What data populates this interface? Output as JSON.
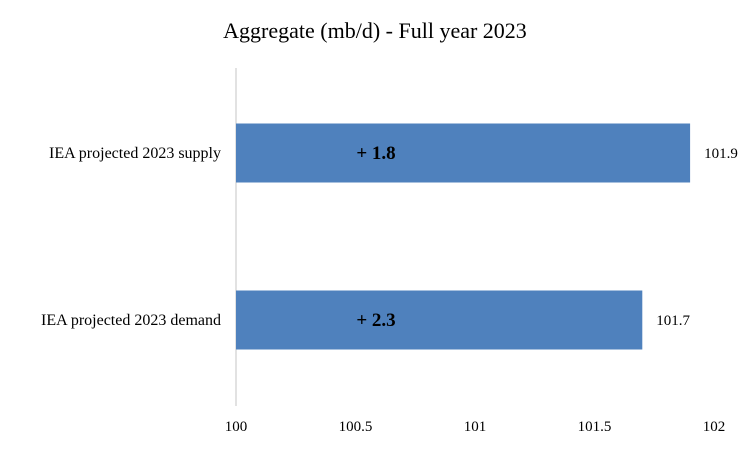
{
  "chart_data": {
    "type": "bar",
    "orientation": "horizontal",
    "title": "Aggregate (mb/d) - Full year 2023",
    "xlabel": "",
    "ylabel": "",
    "categories": [
      "IEA projected 2023 supply",
      "IEA projected 2023 demand"
    ],
    "values": [
      101.9,
      101.7
    ],
    "data_labels": [
      "101.9",
      "101.7"
    ],
    "annotations": [
      "+ 1.8",
      "+ 2.3"
    ],
    "xlim": [
      100,
      102
    ],
    "xticks": [
      100,
      100.5,
      101,
      101.5,
      102
    ],
    "xtick_labels": [
      "100",
      "100.5",
      "101",
      "101.5",
      "102"
    ],
    "grid": false,
    "legend": "none",
    "bar_color": "#4f81bd",
    "axis_color": "#d9d9d9"
  }
}
